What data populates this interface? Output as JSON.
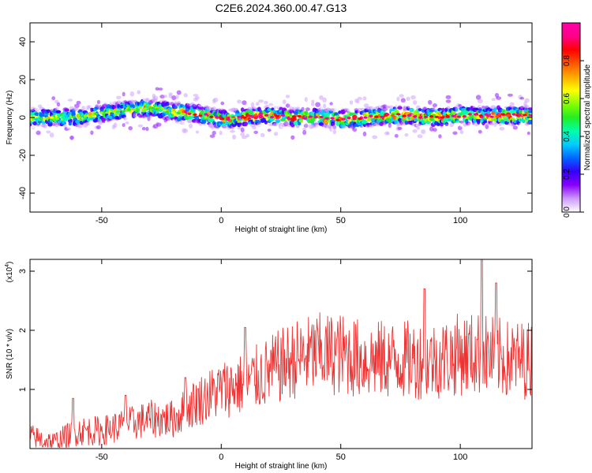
{
  "title": "C2E6.2024.360.00.47.G13",
  "chart_data": [
    {
      "type": "heatmap",
      "xlabel": "Height of straight line (km)",
      "ylabel": "Frequency (Hz)",
      "xlim": [
        -80,
        130
      ],
      "ylim": [
        -50,
        50
      ],
      "xticks": [
        -50,
        0,
        50,
        100
      ],
      "yticks": [
        -40,
        -20,
        0,
        20,
        40
      ],
      "colorbar": {
        "label": "Normalized spectral amplitude",
        "range": [
          0,
          1
        ],
        "ticks": [
          0.0,
          0.2,
          0.4,
          0.6,
          0.8
        ],
        "colors": [
          "#ffffff",
          "#cc99ff",
          "#8800ff",
          "#3300ff",
          "#0066ff",
          "#00ccff",
          "#00ffaa",
          "#22ee22",
          "#88ff00",
          "#ffff00",
          "#ffaa00",
          "#ff5500",
          "#ff0000",
          "#ff0088",
          "#ff00aa"
        ]
      },
      "ridge_center": [
        {
          "x": -80,
          "y": 0
        },
        {
          "x": -60,
          "y": 0
        },
        {
          "x": -40,
          "y": 4
        },
        {
          "x": -30,
          "y": 5
        },
        {
          "x": -20,
          "y": 3
        },
        {
          "x": -10,
          "y": 2
        },
        {
          "x": 0,
          "y": -1
        },
        {
          "x": 10,
          "y": 0
        },
        {
          "x": 20,
          "y": 1
        },
        {
          "x": 30,
          "y": 0
        },
        {
          "x": 40,
          "y": 0
        },
        {
          "x": 50,
          "y": -1
        },
        {
          "x": 60,
          "y": 0
        },
        {
          "x": 70,
          "y": 1
        },
        {
          "x": 80,
          "y": 1
        },
        {
          "x": 90,
          "y": 0
        },
        {
          "x": 100,
          "y": 1
        },
        {
          "x": 110,
          "y": 1
        },
        {
          "x": 120,
          "y": 1
        },
        {
          "x": 130,
          "y": 1
        }
      ],
      "ridge_halfwidth_hz": 5
    },
    {
      "type": "line",
      "xlabel": "Height of straight line (km)",
      "ylabel": "SNR (10 * v/v)",
      "y_multiplier": "(x10",
      "y_multiplier_exp": "4",
      "y_multiplier_close": ")",
      "xlim": [
        -80,
        130
      ],
      "ylim": [
        0,
        3.2
      ],
      "xticks": [
        -50,
        0,
        50,
        100
      ],
      "yticks": [
        1,
        2,
        3
      ],
      "color": "#ee3333",
      "trend": [
        {
          "x": -80,
          "y": 0.2
        },
        {
          "x": -70,
          "y": 0.1
        },
        {
          "x": -60,
          "y": 0.3
        },
        {
          "x": -50,
          "y": 0.3
        },
        {
          "x": -40,
          "y": 0.4
        },
        {
          "x": -30,
          "y": 0.5
        },
        {
          "x": -20,
          "y": 0.5
        },
        {
          "x": -10,
          "y": 0.8
        },
        {
          "x": 0,
          "y": 1.0
        },
        {
          "x": 10,
          "y": 1.1
        },
        {
          "x": 20,
          "y": 1.3
        },
        {
          "x": 30,
          "y": 1.5
        },
        {
          "x": 40,
          "y": 1.6
        },
        {
          "x": 50,
          "y": 1.6
        },
        {
          "x": 60,
          "y": 1.5
        },
        {
          "x": 70,
          "y": 1.5
        },
        {
          "x": 80,
          "y": 1.5
        },
        {
          "x": 90,
          "y": 1.5
        },
        {
          "x": 100,
          "y": 1.6
        },
        {
          "x": 110,
          "y": 1.6
        },
        {
          "x": 120,
          "y": 1.5
        },
        {
          "x": 130,
          "y": 1.5
        }
      ],
      "peaks": [
        {
          "x": -62,
          "y": 0.85
        },
        {
          "x": -40,
          "y": 0.9
        },
        {
          "x": -15,
          "y": 1.2
        },
        {
          "x": 10,
          "y": 2.05
        },
        {
          "x": 85,
          "y": 2.7
        },
        {
          "x": 109,
          "y": 3.2
        },
        {
          "x": 115,
          "y": 2.8
        }
      ]
    }
  ]
}
